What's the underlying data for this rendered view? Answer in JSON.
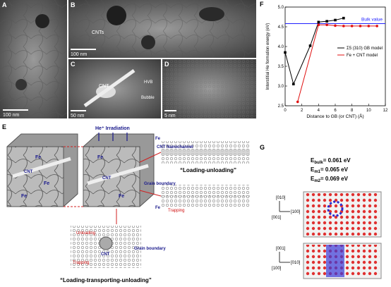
{
  "panels": {
    "a": {
      "label": "A",
      "scale": "100 nm"
    },
    "b": {
      "label": "B",
      "scale": "100 nm",
      "note": "CNTs"
    },
    "c": {
      "label": "C",
      "scale": "50 nm",
      "notes": [
        "CNT",
        "HVB",
        "Bubble"
      ]
    },
    "d": {
      "label": "D",
      "scale": "5 nm"
    },
    "e": {
      "label": "E",
      "irradiation": "He⁺ Irradiation",
      "fe": [
        "Fe",
        "Fe",
        "Fe",
        "Fe",
        "Fe",
        "Fe",
        "Fe"
      ],
      "cnt": [
        "CNT",
        "CNT",
        "CNT"
      ],
      "nanochannel": "CNT Nanochannel",
      "grain_boundary": [
        "Grain boundary",
        "Grain boundary"
      ],
      "trapping": [
        "Trapping",
        "Trapping"
      ],
      "unloading": "Unloading",
      "mode1": "“Loading-unloading”",
      "mode2": "“Loading-transporting-unloading”"
    },
    "f": {
      "label": "F"
    },
    "g": {
      "label": "G",
      "energies": [
        {
          "symbol": "E",
          "sub": "bulk",
          "text": "= 0.061 eV"
        },
        {
          "symbol": "E",
          "sub": "m1",
          "text": "= 0.065 eV"
        },
        {
          "symbol": "E",
          "sub": "m2",
          "text": "= 0.069 eV"
        }
      ],
      "axes1": [
        "[010]",
        "[001]",
        "[100]"
      ],
      "axes2": [
        "[001]",
        "[100]",
        "[010]"
      ]
    }
  },
  "chart_data": {
    "type": "line",
    "xlabel": "Distance to GB (or CNT) (Å)",
    "ylabel": "Interstitial He formation energy (eV)",
    "xlim": [
      0,
      12
    ],
    "xticks": [
      0,
      2,
      4,
      6,
      8,
      10,
      12
    ],
    "ylim": [
      2.5,
      5.0
    ],
    "yticks": [
      2.5,
      {
        "value": 3,
        "label": "3.0"
      },
      3.5,
      {
        "value": 4,
        "label": "4.0"
      },
      4.5,
      {
        "value": 5,
        "label": "5.0"
      }
    ],
    "legend": "right",
    "series": [
      {
        "name": "Σ5 (310) GB model",
        "color": "#000000",
        "marker": "square",
        "x": [
          0,
          1,
          3,
          4,
          5,
          6,
          7
        ],
        "values": [
          3.85,
          3.05,
          4.02,
          4.62,
          4.64,
          4.67,
          4.72
        ]
      },
      {
        "name": "Fe + CNT model",
        "color": "#e01010",
        "marker": "circle",
        "x": [
          1.5,
          4,
          5,
          6,
          7,
          8,
          9,
          10,
          11
        ],
        "values": [
          2.6,
          4.55,
          4.55,
          4.53,
          4.52,
          4.52,
          4.52,
          4.52,
          4.52
        ]
      }
    ],
    "reference": {
      "label": "Bulk value",
      "value": 4.58,
      "color": "#2020ff"
    }
  }
}
